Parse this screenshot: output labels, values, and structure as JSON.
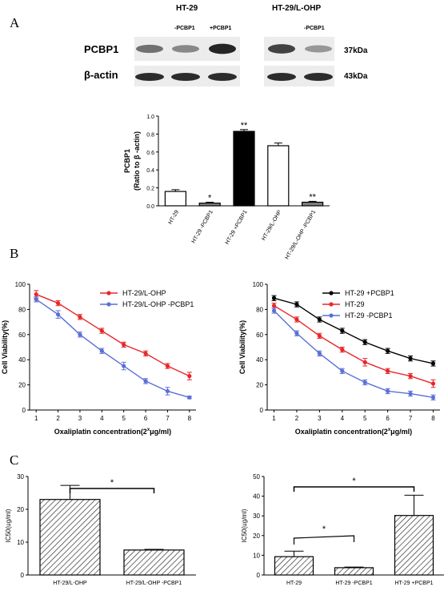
{
  "panels": {
    "a": "A",
    "b": "B",
    "c": "C"
  },
  "blot": {
    "group1": "HT-29",
    "group2": "HT-29/L-OHP",
    "lanes1": [
      "-PCBP1",
      "+PCBP1"
    ],
    "lanes2": [
      "-PCBP1"
    ],
    "row1_label": "PCBP1",
    "row2_label": "β-actin",
    "row1_kda": "37kDa",
    "row2_kda": "43kDa",
    "pcbp1_intensity": [
      0.45,
      0.3,
      0.95,
      0.75,
      0.2
    ],
    "actin_intensity": [
      0.9,
      0.9,
      0.9,
      0.9,
      0.9
    ]
  },
  "chart_data": [
    {
      "id": "a-bar",
      "type": "bar",
      "categories": [
        "HT-29",
        "HT-29 -PCBP1",
        "HT-29 +PCBP1",
        "HT-29/L-OHP",
        "HT-29/L-OHP -PCBP1"
      ],
      "values": [
        0.16,
        0.03,
        0.83,
        0.67,
        0.04
      ],
      "errors": [
        0.02,
        0.01,
        0.02,
        0.03,
        0.01
      ],
      "fills": [
        "#ffffff",
        "#808080",
        "#000000",
        "#ffffff",
        "#808080"
      ],
      "annotations": [
        "",
        "*",
        "**",
        "",
        "**"
      ],
      "ylabel": "PCBP1 (Ratio to β -actin)",
      "ylabel_lines": [
        "PCBP1",
        "(Ratio to β -actin)"
      ],
      "ylim": [
        0,
        1.0
      ],
      "yticks": [
        "0.0",
        "0.2",
        "0.4",
        "0.6",
        "0.8",
        "1.0"
      ]
    },
    {
      "id": "b-left",
      "type": "line",
      "x": [
        1,
        2,
        3,
        4,
        5,
        6,
        7,
        8
      ],
      "series": [
        {
          "name": "HT-29/L-OHP",
          "color": "#e8262a",
          "values": [
            92,
            85,
            74,
            63,
            52,
            45,
            35,
            27
          ],
          "errors": [
            3,
            2,
            2,
            2,
            2,
            2,
            2,
            3
          ]
        },
        {
          "name": "HT-29/L-OHP -PCBP1",
          "color": "#5b6fd6",
          "values": [
            88,
            76,
            60,
            47,
            35,
            23,
            15,
            10
          ],
          "errors": [
            2,
            3,
            2,
            2,
            3,
            2,
            3,
            1
          ]
        }
      ],
      "xlabel": "Oxaliplatin concentration(2",
      "xlabel_sup": "x",
      "xlabel_end": "μg/ml)",
      "ylabel": "Cell Viability(%)",
      "ylim": [
        0,
        100
      ],
      "yticks": [
        "0",
        "20",
        "40",
        "60",
        "80",
        "100"
      ],
      "xticks": [
        "1",
        "2",
        "3",
        "4",
        "5",
        "6",
        "7",
        "8"
      ]
    },
    {
      "id": "b-right",
      "type": "line",
      "x": [
        1,
        2,
        3,
        4,
        5,
        6,
        7,
        8
      ],
      "series": [
        {
          "name": "HT-29 +PCBP1",
          "color": "#000000",
          "values": [
            89,
            84,
            72,
            63,
            54,
            47,
            41,
            37
          ],
          "errors": [
            2,
            2,
            2,
            2,
            2,
            2,
            2,
            2
          ]
        },
        {
          "name": "HT-29",
          "color": "#e8262a",
          "values": [
            83,
            72,
            59,
            48,
            38,
            31,
            27,
            21
          ],
          "errors": [
            2,
            2,
            2,
            2,
            3,
            2,
            2,
            3
          ]
        },
        {
          "name": "HT-29 -PCBP1",
          "color": "#5b6fd6",
          "values": [
            79,
            61,
            45,
            31,
            22,
            15,
            13,
            10
          ],
          "errors": [
            2,
            2,
            2,
            2,
            2,
            2,
            2,
            2
          ]
        }
      ],
      "xlabel": "Oxaliplatin concentration(2",
      "xlabel_sup": "x",
      "xlabel_end": "μg/ml)",
      "ylabel": "Cell Viability(%)",
      "ylim": [
        0,
        100
      ],
      "yticks": [
        "0",
        "20",
        "40",
        "60",
        "80",
        "100"
      ],
      "xticks": [
        "1",
        "2",
        "3",
        "4",
        "5",
        "6",
        "7",
        "8"
      ]
    },
    {
      "id": "c-left",
      "type": "bar",
      "categories": [
        "HT-29/L-OHP",
        "HT-29/L-OHP -PCBP1"
      ],
      "values": [
        23.0,
        7.6
      ],
      "errors": [
        4.3,
        0.2
      ],
      "ylabel": "IC50(ug/ml)",
      "ylim": [
        0,
        30
      ],
      "yticks": [
        "0",
        "10",
        "20",
        "30"
      ],
      "significance": "*"
    },
    {
      "id": "c-right",
      "type": "bar",
      "categories": [
        "HT-29",
        "HT-29 -PCBP1",
        "HT-29 +PCBP1"
      ],
      "values": [
        9.3,
        3.7,
        30.2
      ],
      "errors": [
        2.8,
        0.3,
        10.3
      ],
      "ylabel": "IC50(ug/ml)",
      "ylim": [
        0,
        50
      ],
      "yticks": [
        "0",
        "10",
        "20",
        "30",
        "40",
        "50"
      ],
      "significance": [
        "*",
        "*"
      ]
    }
  ]
}
